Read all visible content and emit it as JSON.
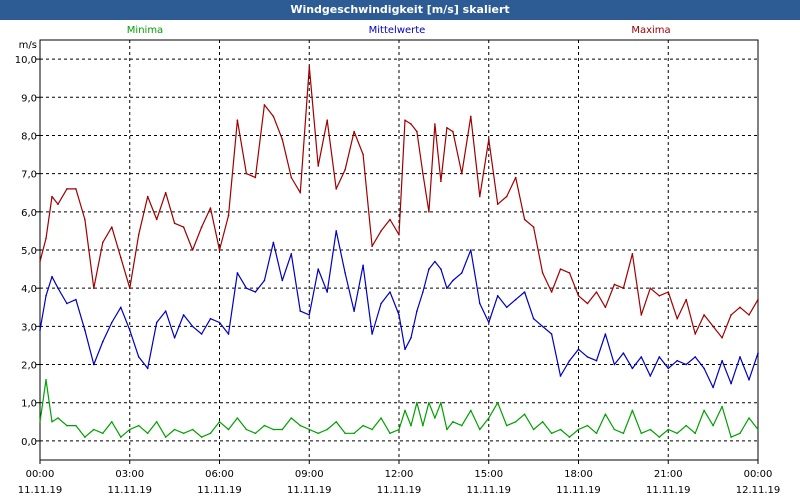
{
  "window": {
    "title": "Windgeschwindigkeit [m/s] skaliert"
  },
  "chart_data": {
    "type": "line",
    "ylabel": "m/s",
    "ylim": [
      -0.5,
      10.5
    ],
    "yticks": [
      "0,0",
      "1,0",
      "2,0",
      "3,0",
      "4,0",
      "5,0",
      "6,0",
      "7,0",
      "8,0",
      "9,0",
      "10,0"
    ],
    "xlim": [
      0,
      24
    ],
    "xticks": [
      {
        "time": "00:00",
        "date": "11.11.19"
      },
      {
        "time": "03:00",
        "date": "11.11.19"
      },
      {
        "time": "06:00",
        "date": "11.11.19"
      },
      {
        "time": "09:00",
        "date": "11.11.19"
      },
      {
        "time": "12:00",
        "date": "11.11.19"
      },
      {
        "time": "15:00",
        "date": "11.11.19"
      },
      {
        "time": "18:00",
        "date": "11.11.19"
      },
      {
        "time": "21:00",
        "date": "11.11.19"
      },
      {
        "time": "00:00",
        "date": "12.11.19"
      }
    ],
    "grid": true,
    "legend_position": "top",
    "series": [
      {
        "name": "Minima",
        "color": "#00a000",
        "x": [
          0,
          0.2,
          0.4,
          0.6,
          0.9,
          1.2,
          1.5,
          1.8,
          2.1,
          2.4,
          2.7,
          3.0,
          3.3,
          3.6,
          3.9,
          4.2,
          4.5,
          4.8,
          5.1,
          5.4,
          5.7,
          6.0,
          6.3,
          6.6,
          6.9,
          7.2,
          7.5,
          7.8,
          8.1,
          8.4,
          8.7,
          9.0,
          9.3,
          9.6,
          9.9,
          10.2,
          10.5,
          10.8,
          11.1,
          11.4,
          11.7,
          12.0,
          12.2,
          12.4,
          12.6,
          12.8,
          13.0,
          13.2,
          13.4,
          13.6,
          13.8,
          14.1,
          14.4,
          14.7,
          15.0,
          15.3,
          15.6,
          15.9,
          16.2,
          16.5,
          16.8,
          17.1,
          17.4,
          17.7,
          18.0,
          18.3,
          18.6,
          18.9,
          19.2,
          19.5,
          19.8,
          20.1,
          20.4,
          20.7,
          21.0,
          21.3,
          21.6,
          21.9,
          22.2,
          22.5,
          22.8,
          23.1,
          23.4,
          23.7,
          24.0
        ],
        "values": [
          0.5,
          1.6,
          0.5,
          0.6,
          0.4,
          0.4,
          0.1,
          0.3,
          0.2,
          0.5,
          0.1,
          0.3,
          0.4,
          0.2,
          0.5,
          0.1,
          0.3,
          0.2,
          0.3,
          0.1,
          0.2,
          0.5,
          0.3,
          0.6,
          0.3,
          0.2,
          0.4,
          0.3,
          0.3,
          0.6,
          0.4,
          0.3,
          0.2,
          0.3,
          0.5,
          0.2,
          0.2,
          0.4,
          0.3,
          0.6,
          0.2,
          0.3,
          0.8,
          0.4,
          1.0,
          0.4,
          1.0,
          0.6,
          1.0,
          0.3,
          0.5,
          0.4,
          0.8,
          0.3,
          0.6,
          1.0,
          0.4,
          0.5,
          0.7,
          0.3,
          0.5,
          0.2,
          0.3,
          0.1,
          0.3,
          0.4,
          0.2,
          0.7,
          0.3,
          0.2,
          0.8,
          0.2,
          0.3,
          0.1,
          0.3,
          0.2,
          0.4,
          0.2,
          0.8,
          0.4,
          0.9,
          0.1,
          0.2,
          0.6,
          0.3
        ]
      },
      {
        "name": "Mittelwerte",
        "color": "#0000c0",
        "x": [
          0,
          0.2,
          0.4,
          0.6,
          0.9,
          1.2,
          1.5,
          1.8,
          2.1,
          2.4,
          2.7,
          3.0,
          3.3,
          3.6,
          3.9,
          4.2,
          4.5,
          4.8,
          5.1,
          5.4,
          5.7,
          6.0,
          6.3,
          6.6,
          6.9,
          7.2,
          7.5,
          7.8,
          8.1,
          8.4,
          8.7,
          9.0,
          9.3,
          9.6,
          9.9,
          10.2,
          10.5,
          10.8,
          11.1,
          11.4,
          11.7,
          12.0,
          12.2,
          12.4,
          12.6,
          12.8,
          13.0,
          13.2,
          13.4,
          13.6,
          13.8,
          14.1,
          14.4,
          14.7,
          15.0,
          15.3,
          15.6,
          15.9,
          16.2,
          16.5,
          16.8,
          17.1,
          17.4,
          17.7,
          18.0,
          18.3,
          18.6,
          18.9,
          19.2,
          19.5,
          19.8,
          20.1,
          20.4,
          20.7,
          21.0,
          21.3,
          21.6,
          21.9,
          22.2,
          22.5,
          22.8,
          23.1,
          23.4,
          23.7,
          24.0
        ],
        "values": [
          2.9,
          3.8,
          4.3,
          4.0,
          3.6,
          3.7,
          2.9,
          2.0,
          2.6,
          3.1,
          3.5,
          2.9,
          2.2,
          1.9,
          3.1,
          3.4,
          2.7,
          3.3,
          3.0,
          2.8,
          3.2,
          3.1,
          2.8,
          4.4,
          4.0,
          3.9,
          4.2,
          5.2,
          4.2,
          4.9,
          3.4,
          3.3,
          4.5,
          3.9,
          5.5,
          4.4,
          3.4,
          4.6,
          2.8,
          3.6,
          3.9,
          3.3,
          2.4,
          2.7,
          3.4,
          3.9,
          4.5,
          4.7,
          4.5,
          4.0,
          4.2,
          4.4,
          5.0,
          3.6,
          3.1,
          3.8,
          3.5,
          3.7,
          3.9,
          3.2,
          3.0,
          2.8,
          1.7,
          2.1,
          2.4,
          2.2,
          2.1,
          2.8,
          2.0,
          2.3,
          1.9,
          2.2,
          1.7,
          2.2,
          1.9,
          2.1,
          2.0,
          2.2,
          1.9,
          1.4,
          2.1,
          1.5,
          2.2,
          1.6,
          2.3
        ]
      },
      {
        "name": "Maxima",
        "color": "#a00000",
        "x": [
          0,
          0.2,
          0.4,
          0.6,
          0.9,
          1.2,
          1.5,
          1.8,
          2.1,
          2.4,
          2.7,
          3.0,
          3.3,
          3.6,
          3.9,
          4.2,
          4.5,
          4.8,
          5.1,
          5.4,
          5.7,
          6.0,
          6.3,
          6.6,
          6.9,
          7.2,
          7.5,
          7.8,
          8.1,
          8.4,
          8.7,
          9.0,
          9.3,
          9.6,
          9.9,
          10.2,
          10.5,
          10.8,
          11.1,
          11.4,
          11.7,
          12.0,
          12.2,
          12.4,
          12.6,
          12.8,
          13.0,
          13.2,
          13.4,
          13.6,
          13.8,
          14.1,
          14.4,
          14.7,
          15.0,
          15.3,
          15.6,
          15.9,
          16.2,
          16.5,
          16.8,
          17.1,
          17.4,
          17.7,
          18.0,
          18.3,
          18.6,
          18.9,
          19.2,
          19.5,
          19.8,
          20.1,
          20.4,
          20.7,
          21.0,
          21.3,
          21.6,
          21.9,
          22.2,
          22.5,
          22.8,
          23.1,
          23.4,
          23.7,
          24.0
        ],
        "values": [
          4.7,
          5.3,
          6.4,
          6.2,
          6.6,
          6.6,
          5.8,
          4.0,
          5.2,
          5.6,
          4.8,
          4.0,
          5.4,
          6.4,
          5.8,
          6.5,
          5.7,
          5.6,
          5.0,
          5.6,
          6.1,
          5.0,
          5.9,
          8.4,
          7.0,
          6.9,
          8.8,
          8.5,
          7.9,
          6.9,
          6.5,
          9.8,
          7.2,
          8.4,
          6.6,
          7.1,
          8.1,
          7.5,
          5.1,
          5.5,
          5.8,
          5.4,
          8.4,
          8.3,
          8.1,
          7.0,
          6.0,
          8.3,
          6.8,
          8.2,
          8.1,
          7.0,
          8.5,
          6.4,
          7.9,
          6.2,
          6.4,
          6.9,
          5.8,
          5.6,
          4.4,
          3.9,
          4.5,
          4.4,
          3.8,
          3.6,
          3.9,
          3.5,
          4.1,
          4.0,
          4.9,
          3.3,
          4.0,
          3.8,
          3.9,
          3.2,
          3.7,
          2.8,
          3.3,
          3.0,
          2.7,
          3.3,
          3.5,
          3.3,
          3.7
        ]
      }
    ]
  }
}
